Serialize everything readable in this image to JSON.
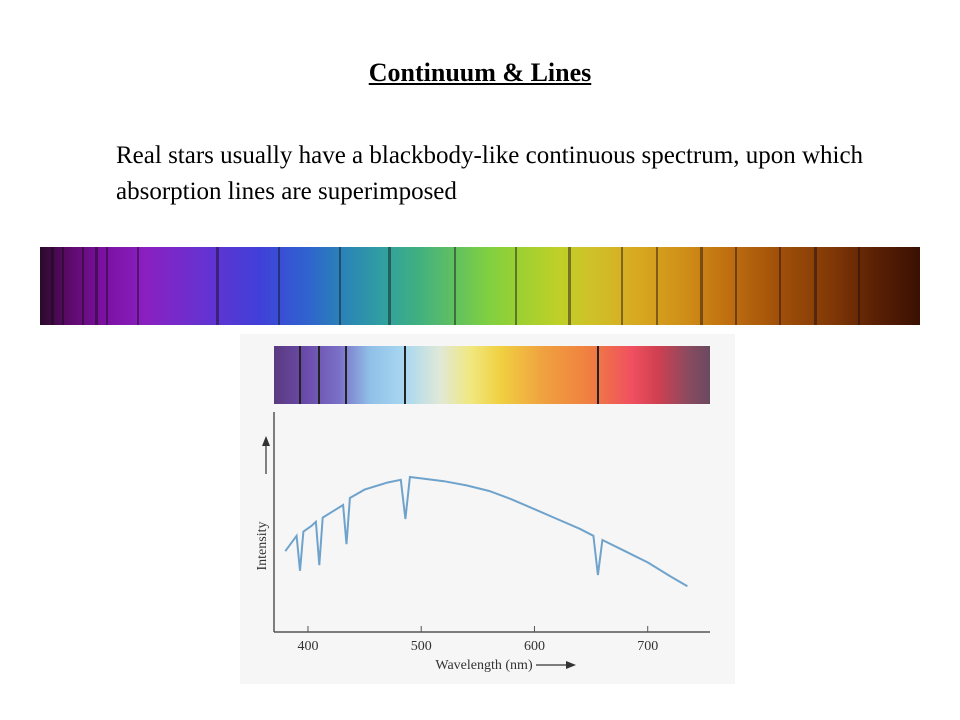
{
  "slide": {
    "title": "Continuum & Lines",
    "body": "Real stars usually have a blackbody-like continuous spectrum, upon which absorption lines are superimposed"
  },
  "solar_spectrum": {
    "dark_lines": [
      0.012,
      0.025,
      0.048,
      0.062,
      0.075,
      0.11,
      0.2,
      0.27,
      0.34,
      0.395,
      0.47,
      0.54,
      0.6,
      0.66,
      0.7,
      0.75,
      0.79,
      0.84,
      0.88,
      0.93
    ]
  },
  "chart_data": {
    "type": "line",
    "xlabel": "Wavelength (nm)",
    "ylabel": "Intensity",
    "xlim": [
      370,
      755
    ],
    "xticks": [
      400,
      500,
      600,
      700
    ],
    "series": [
      {
        "values": [
          [
            380,
            0.22
          ],
          [
            390,
            0.33
          ],
          [
            393,
            0.08
          ],
          [
            396,
            0.36
          ],
          [
            403,
            0.4
          ],
          [
            407,
            0.43
          ],
          [
            410,
            0.12
          ],
          [
            413,
            0.46
          ],
          [
            425,
            0.52
          ],
          [
            431,
            0.55
          ],
          [
            434,
            0.27
          ],
          [
            437,
            0.6
          ],
          [
            450,
            0.66
          ],
          [
            470,
            0.71
          ],
          [
            482,
            0.73
          ],
          [
            486,
            0.45
          ],
          [
            490,
            0.75
          ],
          [
            500,
            0.74
          ],
          [
            520,
            0.72
          ],
          [
            540,
            0.69
          ],
          [
            560,
            0.65
          ],
          [
            580,
            0.59
          ],
          [
            600,
            0.52
          ],
          [
            620,
            0.45
          ],
          [
            640,
            0.38
          ],
          [
            652,
            0.33
          ],
          [
            656,
            0.05
          ],
          [
            660,
            0.3
          ],
          [
            680,
            0.22
          ],
          [
            700,
            0.14
          ],
          [
            720,
            0.04
          ],
          [
            735,
            -0.03
          ]
        ]
      }
    ],
    "absorption_lines_nm": [
      393,
      410,
      434,
      486,
      656
    ],
    "line_color": "#6fa3cc"
  }
}
